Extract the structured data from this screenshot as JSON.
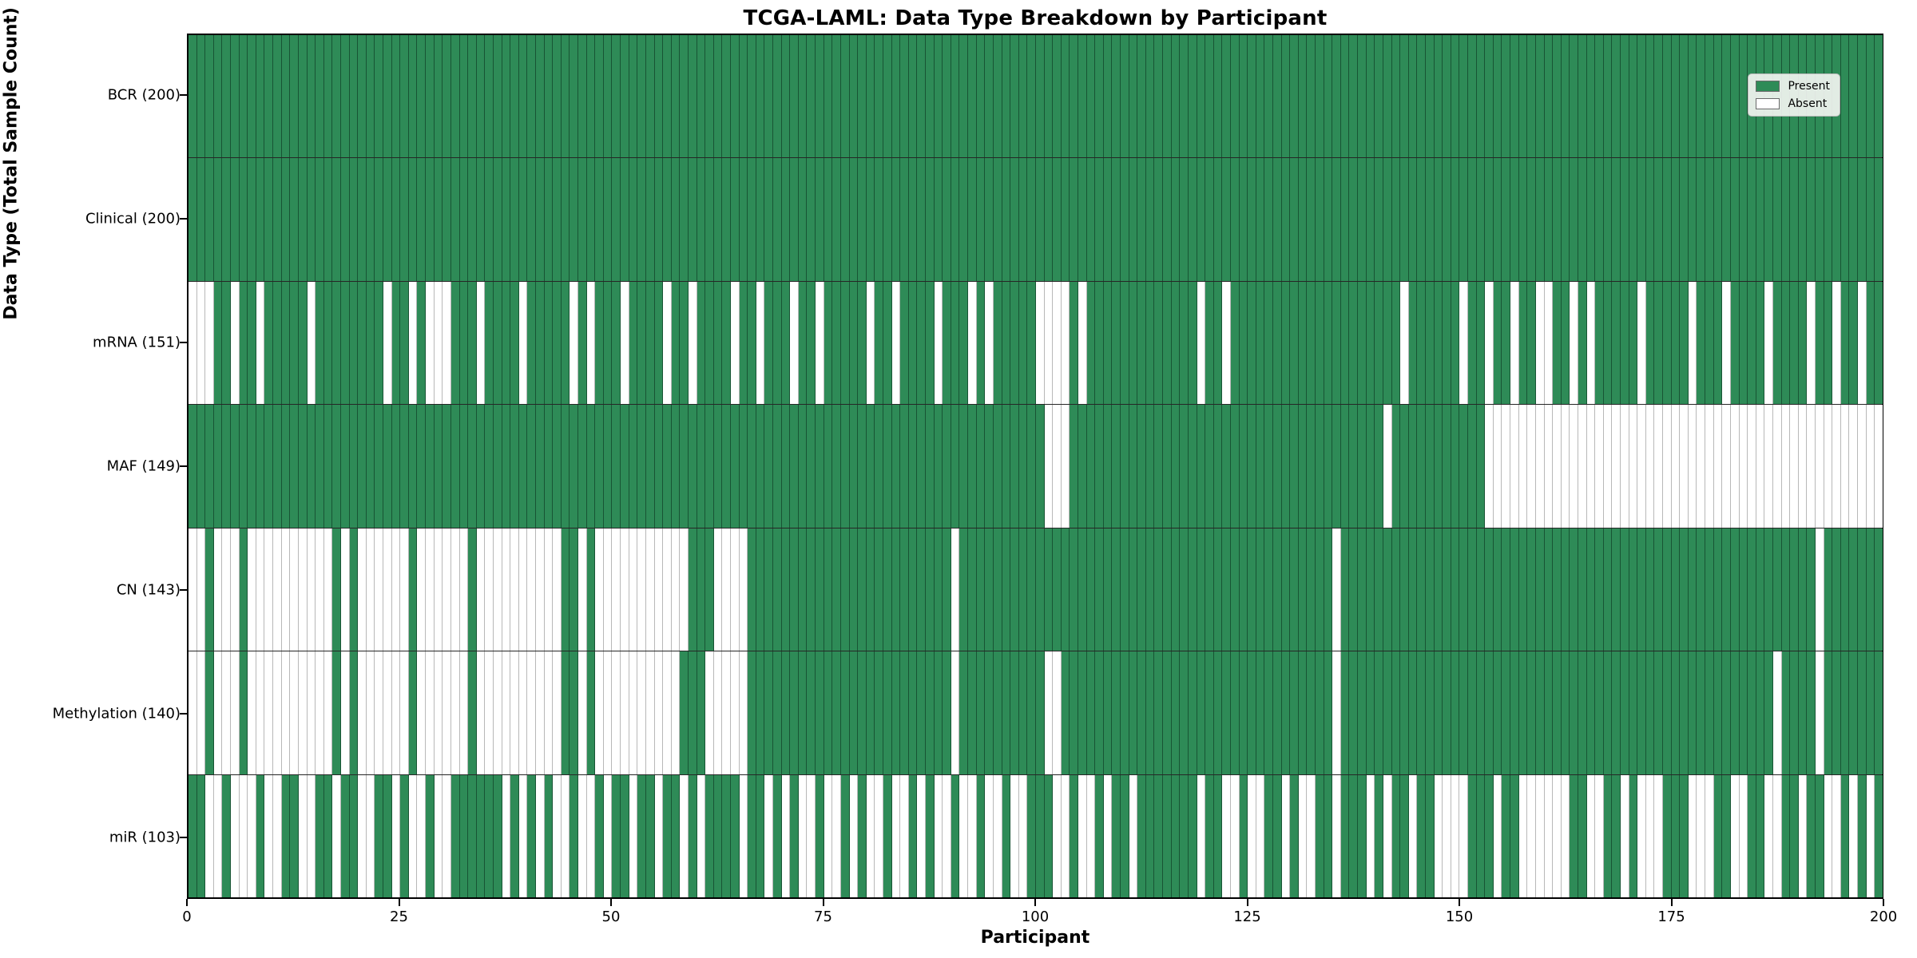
{
  "title": "TCGA-LAML: Data Type Breakdown by Participant",
  "xlabel": "Participant",
  "ylabel": "Data Type (Total Sample Count)",
  "legend": {
    "present_label": "Present",
    "absent_label": "Absent"
  },
  "colors": {
    "present": "#2e8b57",
    "absent": "#ffffff",
    "grid_on_present": "rgba(8,40,24,0.55)",
    "grid_on_absent": "rgba(0,0,0,0.28)",
    "row_separator": "#000000",
    "plot_border": "#000000"
  },
  "chart_data": {
    "type": "heatmap",
    "xlabel": "Participant",
    "ylabel": "Data Type (Total Sample Count)",
    "title": "TCGA-LAML: Data Type Breakdown by Participant",
    "n_participants": 200,
    "x_min": 0,
    "x_max": 200,
    "x_ticks": [
      0,
      25,
      50,
      75,
      100,
      125,
      150,
      175,
      200
    ],
    "legend_position": "upper right",
    "grid": true,
    "cell_states": [
      "Present",
      "Absent"
    ],
    "rows": [
      {
        "label": "BCR (200)",
        "name": "BCR",
        "total_present": 200,
        "absent": []
      },
      {
        "label": "Clinical (200)",
        "name": "Clinical",
        "total_present": 200,
        "absent": []
      },
      {
        "label": "mRNA (151)",
        "name": "mRNA",
        "total_present": 151,
        "absent": [
          0,
          1,
          2,
          5,
          8,
          14,
          23,
          26,
          28,
          29,
          30,
          34,
          39,
          45,
          47,
          51,
          56,
          59,
          64,
          67,
          71,
          74,
          80,
          83,
          88,
          92,
          94,
          100,
          101,
          102,
          103,
          105,
          119,
          122,
          143,
          150,
          153,
          156,
          159,
          160,
          163,
          165,
          171,
          177,
          181,
          186,
          191,
          194,
          197
        ]
      },
      {
        "label": "MAF (149)",
        "name": "MAF",
        "total_present": 149,
        "absent": [
          101,
          102,
          103,
          141,
          153,
          154,
          155,
          156,
          157,
          158,
          159,
          160,
          161,
          162,
          163,
          164,
          165,
          166,
          167,
          168,
          169,
          170,
          171,
          172,
          173,
          174,
          175,
          176,
          177,
          178,
          179,
          180,
          181,
          182,
          183,
          184,
          185,
          186,
          187,
          188,
          189,
          190,
          191,
          192,
          193,
          194,
          195,
          196,
          197,
          198,
          199
        ]
      },
      {
        "label": "CN (143)",
        "name": "CN",
        "total_present": 143,
        "absent": [
          0,
          1,
          3,
          4,
          5,
          7,
          8,
          9,
          10,
          11,
          12,
          13,
          14,
          15,
          16,
          18,
          20,
          21,
          22,
          23,
          24,
          25,
          27,
          28,
          29,
          30,
          31,
          32,
          34,
          35,
          36,
          37,
          38,
          39,
          40,
          41,
          42,
          43,
          46,
          48,
          49,
          50,
          51,
          52,
          53,
          54,
          55,
          56,
          57,
          58,
          62,
          63,
          64,
          65,
          90,
          135,
          192
        ]
      },
      {
        "label": "Methylation (140)",
        "name": "Methylation",
        "total_present": 140,
        "absent": [
          0,
          1,
          3,
          4,
          5,
          7,
          8,
          9,
          10,
          11,
          12,
          13,
          14,
          15,
          16,
          18,
          20,
          21,
          22,
          23,
          24,
          25,
          27,
          28,
          29,
          30,
          31,
          32,
          34,
          35,
          36,
          37,
          38,
          39,
          40,
          41,
          42,
          43,
          46,
          48,
          49,
          50,
          51,
          52,
          53,
          54,
          55,
          56,
          57,
          61,
          62,
          63,
          64,
          65,
          90,
          101,
          102,
          135,
          187,
          192
        ]
      },
      {
        "label": "miR (103)",
        "name": "miR",
        "total_present": 103,
        "absent": [
          2,
          3,
          5,
          6,
          7,
          9,
          10,
          13,
          14,
          17,
          20,
          21,
          24,
          26,
          27,
          29,
          30,
          37,
          39,
          41,
          43,
          44,
          46,
          47,
          49,
          52,
          55,
          58,
          60,
          65,
          68,
          70,
          72,
          73,
          75,
          76,
          78,
          80,
          81,
          83,
          84,
          86,
          88,
          89,
          91,
          92,
          94,
          95,
          97,
          98,
          102,
          103,
          105,
          106,
          108,
          111,
          119,
          122,
          123,
          125,
          126,
          129,
          131,
          132,
          135,
          139,
          141,
          144,
          147,
          148,
          149,
          150,
          154,
          157,
          158,
          159,
          160,
          161,
          162,
          165,
          166,
          169,
          171,
          172,
          173,
          177,
          178,
          179,
          182,
          183,
          186,
          187,
          190,
          193,
          194,
          196,
          198
        ]
      }
    ]
  }
}
